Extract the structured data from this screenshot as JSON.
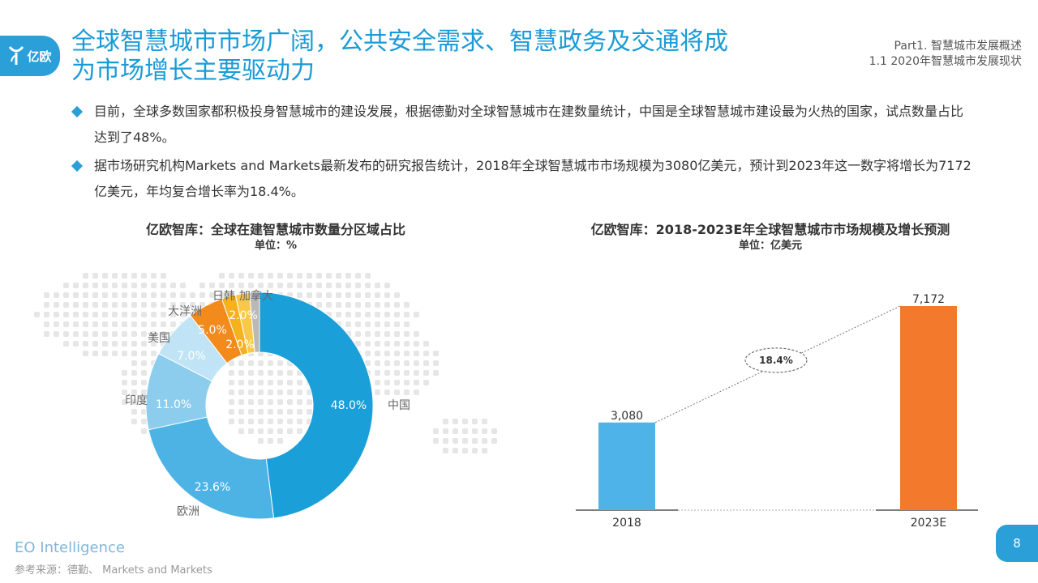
{
  "header": {
    "logo_text": "亿欧",
    "title_line1": "全球智慧城市市场广阔，公共安全需求、智慧政务及交通将成",
    "title_line2": "为市场增长主要驱动力",
    "breadcrumb_line1": "Part1. 智慧城市发展概述",
    "breadcrumb_line2": "1.1  2020年智慧城市发展现状"
  },
  "bullets": [
    "目前，全球多数国家都积极投身智慧城市的建设发展，根据德勤对全球智慧城市在建数量统计，中国是全球智慧城市建设最为火热的国家，试点数量占比达到了48%。",
    "据市场研究机构Markets and Markets最新发布的研究报告统计，2018年全球智慧城市市场规模为3080亿美元，预计到2023年这一数字将增长为7172亿美元，年均复合增长率为18.4%。"
  ],
  "chart_data": [
    {
      "type": "pie",
      "title": "亿欧智库：全球在建智慧城市数量分区域占比",
      "unit": "单位：%",
      "categories": [
        "中国",
        "欧洲",
        "印度",
        "美国",
        "大洋洲",
        "日韩",
        "加拿大"
      ],
      "values": [
        48.0,
        23.6,
        11.0,
        7.0,
        5.0,
        2.0,
        2.0
      ],
      "value_labels": [
        "48.0%",
        "23.6%",
        "11.0%",
        "7.0%",
        "5.0%",
        "2.0%",
        "2.0%"
      ],
      "other_share_unlabeled": 1.4,
      "colors": [
        "#1a9fd8",
        "#4db3e4",
        "#8ccdee",
        "#c0e4f6",
        "#f28a1c",
        "#f6b21c",
        "#f7c84a",
        "#b9b9b9"
      ],
      "donut": true
    },
    {
      "type": "bar",
      "title": "亿欧智库：2018-2023E年全球智慧城市市场规模及增长预测",
      "unit": "单位：亿美元",
      "categories": [
        "2018",
        "2023E"
      ],
      "values": [
        3080,
        7172
      ],
      "value_labels": [
        "3,080",
        "7,172"
      ],
      "colors": [
        "#4db3e8",
        "#f3792c"
      ],
      "cagr_label": "18.4%"
    }
  ],
  "footer": {
    "brand": "EO Intelligence",
    "source": "参考来源：德勤、 Markets and Markets",
    "page_number": "8"
  }
}
